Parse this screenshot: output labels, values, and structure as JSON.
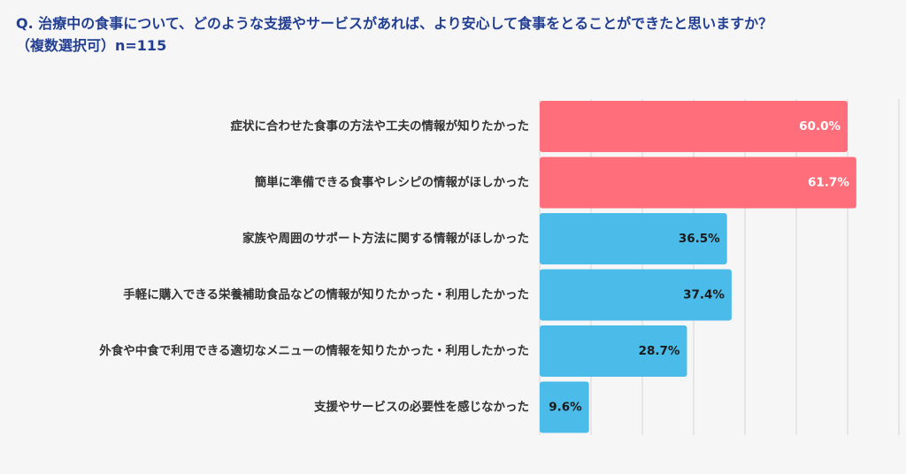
{
  "question": {
    "line1": "Q. 治療中の食事について、どのような支援やサービスがあれば、より安心して食事をとることができたと思いますか？",
    "line2": "（複数選択可）n=115"
  },
  "colors": {
    "highlight": "#ff6f7b",
    "normal": "#4bbbe9",
    "title": "#233f93",
    "grid": "#d5d5d5"
  },
  "chart_data": {
    "type": "bar",
    "orientation": "horizontal",
    "categories": [
      "症状に合わせた食事の方法や工夫の情報が知りたかった",
      "簡単に準備できる食事やレシピの情報がほしかった",
      "家族や周囲のサポート方法に関する情報がほしかった",
      "手軽に購入できる栄養補助食品などの情報が知りたかった・利用したかった",
      "外食や中食で利用できる適切なメニューの情報を知りたかった・利用したかった",
      "支援やサービスの必要性を感じなかった"
    ],
    "values": [
      60.0,
      61.7,
      36.5,
      37.4,
      28.7,
      9.6
    ],
    "value_labels": [
      "60.0%",
      "61.7%",
      "36.5%",
      "37.4%",
      "28.7%",
      "9.6%"
    ],
    "highlighted": [
      true,
      true,
      false,
      false,
      false,
      false
    ],
    "xlim": [
      0,
      70
    ],
    "grid": true
  }
}
